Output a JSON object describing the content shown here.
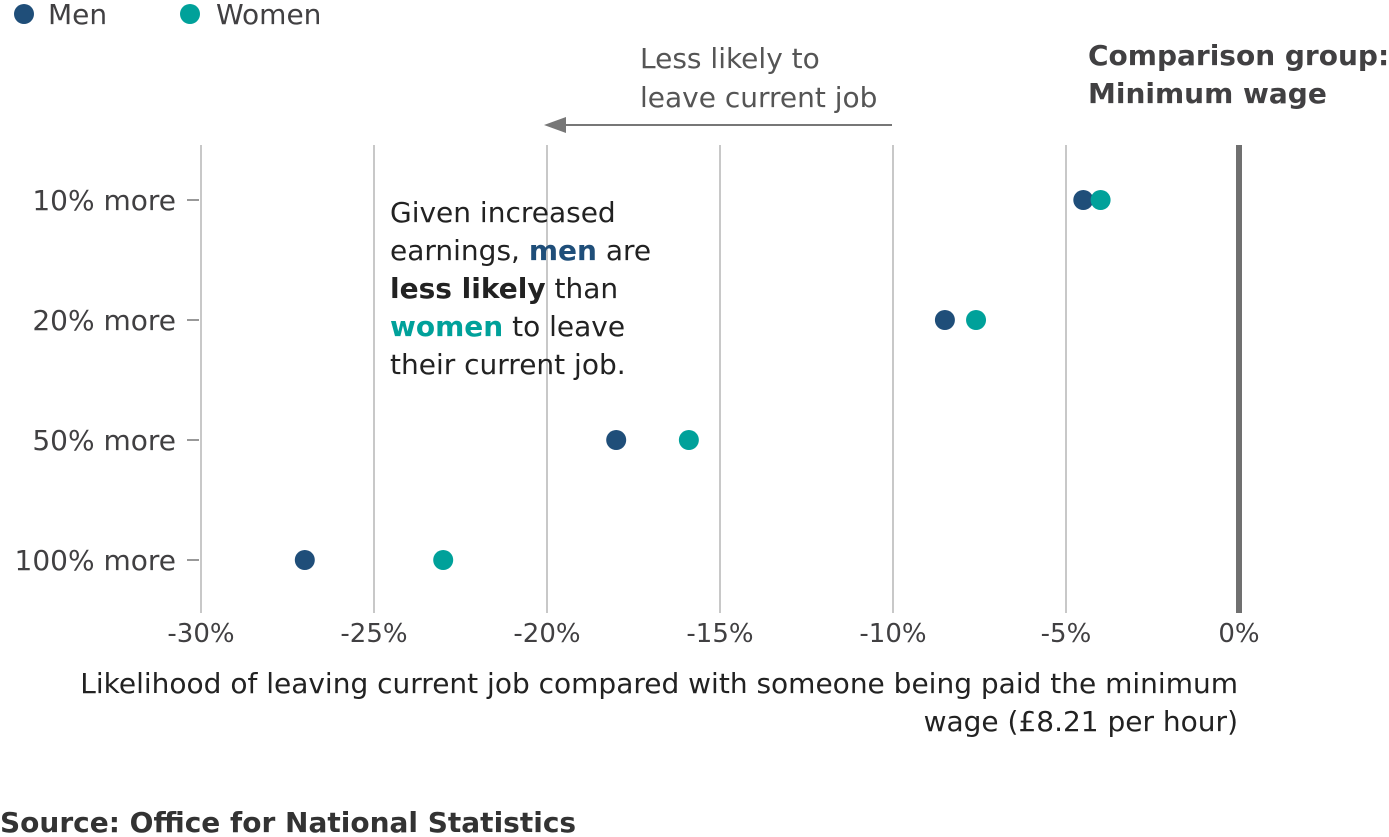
{
  "chart_data": {
    "type": "scatter",
    "categories": [
      "10% more",
      "20% more",
      "50% more",
      "100% more"
    ],
    "series": [
      {
        "name": "Men",
        "color": "#1f4e79",
        "values": [
          -4.5,
          -8.5,
          -18,
          -27
        ]
      },
      {
        "name": "Women",
        "color": "#00a19a",
        "values": [
          -4,
          -7.6,
          -15.9,
          -23
        ]
      }
    ],
    "xlim": [
      -30,
      0
    ],
    "xticks": [
      "-30%",
      "-25%",
      "-20%",
      "-15%",
      "-10%",
      "-5%",
      "0%"
    ],
    "xtick_values": [
      -30,
      -25,
      -20,
      -15,
      -10,
      -5,
      0
    ],
    "xlabel_line1": "Likelihood of leaving current job compared with someone being paid the minimum",
    "xlabel_line2": "wage (£8.21 per hour)",
    "legend_position": "top-left",
    "grid": true
  },
  "arrow_label": {
    "line1": "Less likely to",
    "line2": "leave current job"
  },
  "comparison": {
    "line1": "Comparison group:",
    "line2": "Minimum wage"
  },
  "annotation": {
    "line1": "Given increased",
    "line2_a": "earnings, ",
    "line2_b": "men",
    "line2_c": " are",
    "line3_a": "less likely",
    "line3_b": " than",
    "line4_a": "women",
    "line4_b": " to leave",
    "line5": "their current job."
  },
  "source": "Source: Office for National Statistics"
}
